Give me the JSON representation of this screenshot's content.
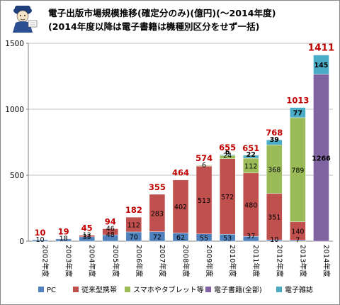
{
  "title": {
    "line1": "電子出版市場規模推移(確定分のみ)(億円)(〜2014年度)",
    "line2": "(2014年度以降は電子書籍は機種別区分をせず一括)"
  },
  "legend": [
    {
      "name": "PC",
      "color": "#4f81bd"
    },
    {
      "name": "従来型携帯",
      "color": "#c0504d"
    },
    {
      "name": "スマホやタブレット等",
      "color": "#9bbb59"
    },
    {
      "name": "電子書籍(全部)",
      "color": "#8064a2"
    },
    {
      "name": "電子雑誌",
      "color": "#4bacc6"
    }
  ],
  "chart_data": {
    "type": "bar",
    "stacked": true,
    "categories": [
      "2002年度",
      "2003年度",
      "2004年度",
      "2005年度",
      "2006年度",
      "2007年度",
      "2008年度",
      "2009年度",
      "2010年度",
      "2011年度",
      "2012年度",
      "2013年度",
      "2014年度"
    ],
    "series": [
      {
        "name": "PC",
        "color": "#4f81bd",
        "values": [
          10,
          18,
          33,
          48,
          70,
          72,
          62,
          55,
          53,
          37,
          10,
          7,
          0
        ]
      },
      {
        "name": "従来型携帯",
        "color": "#c0504d",
        "values": [
          0,
          1,
          12,
          46,
          112,
          283,
          402,
          513,
          572,
          480,
          351,
          140,
          0
        ]
      },
      {
        "name": "スマホやタブレット等",
        "color": "#9bbb59",
        "values": [
          0,
          0,
          0,
          0,
          0,
          0,
          0,
          6,
          24,
          112,
          368,
          789,
          0
        ]
      },
      {
        "name": "電子書籍(全部)",
        "color": "#8064a2",
        "values": [
          0,
          0,
          0,
          0,
          0,
          0,
          0,
          0,
          0,
          0,
          0,
          0,
          1266
        ]
      },
      {
        "name": "電子雑誌",
        "color": "#4bacc6",
        "values": [
          0,
          0,
          0,
          0,
          0,
          0,
          0,
          0,
          6,
          22,
          39,
          77,
          145
        ]
      }
    ],
    "segment_labels": [
      {
        "category": "2002年度",
        "series": "PC",
        "text": "10"
      },
      {
        "category": "2003年度",
        "series": "PC",
        "text": "18"
      },
      {
        "category": "2004年度",
        "series": "PC",
        "text": "33"
      },
      {
        "category": "2004年度",
        "series": "従来型携帯",
        "text": "12"
      },
      {
        "category": "2005年度",
        "series": "PC",
        "text": "48"
      },
      {
        "category": "2005年度",
        "series": "従来型携帯",
        "text": "46"
      },
      {
        "category": "2006年度",
        "series": "PC",
        "text": "70"
      },
      {
        "category": "2006年度",
        "series": "従来型携帯",
        "text": "112"
      },
      {
        "category": "2007年度",
        "series": "PC",
        "text": "72"
      },
      {
        "category": "2007年度",
        "series": "従来型携帯",
        "text": "283"
      },
      {
        "category": "2008年度",
        "series": "PC",
        "text": "62"
      },
      {
        "category": "2008年度",
        "series": "従来型携帯",
        "text": "402"
      },
      {
        "category": "2009年度",
        "series": "PC",
        "text": "55"
      },
      {
        "category": "2009年度",
        "series": "従来型携帯",
        "text": "513"
      },
      {
        "category": "2009年度",
        "series": "スマホやタブレット等",
        "text": "6"
      },
      {
        "category": "2010年度",
        "series": "PC",
        "text": "53"
      },
      {
        "category": "2010年度",
        "series": "従来型携帯",
        "text": "572"
      },
      {
        "category": "2010年度",
        "series": "スマホやタブレット等",
        "text": "24"
      },
      {
        "category": "2010年度",
        "series": "電子雑誌",
        "text": "6"
      },
      {
        "category": "2011年度",
        "series": "PC",
        "text": "37"
      },
      {
        "category": "2011年度",
        "series": "従来型携帯",
        "text": "480"
      },
      {
        "category": "2011年度",
        "series": "スマホやタブレット等",
        "text": "112"
      },
      {
        "category": "2011年度",
        "series": "電子雑誌",
        "text": "22"
      },
      {
        "category": "2012年度",
        "series": "PC",
        "text": "10"
      },
      {
        "category": "2012年度",
        "series": "従来型携帯",
        "text": "351"
      },
      {
        "category": "2012年度",
        "series": "スマホやタブレット等",
        "text": "368"
      },
      {
        "category": "2012年度",
        "series": "電子雑誌",
        "text": "39"
      },
      {
        "category": "2013年度",
        "series": "PC",
        "text": "7"
      },
      {
        "category": "2013年度",
        "series": "従来型携帯",
        "text": "140"
      },
      {
        "category": "2013年度",
        "series": "スマホやタブレット等",
        "text": "789"
      },
      {
        "category": "2013年度",
        "series": "電子雑誌",
        "text": "77"
      },
      {
        "category": "2014年度",
        "series": "電子書籍(全部)",
        "text": "1266"
      },
      {
        "category": "2014年度",
        "series": "電子雑誌",
        "text": "145"
      }
    ],
    "totals": [
      "10",
      "19",
      "45",
      "94",
      "182",
      "355",
      "464",
      "574",
      "655",
      "651",
      "768",
      "1013",
      "1411"
    ],
    "y_ticks": [
      "0",
      "500",
      "1000",
      "1500"
    ],
    "ylim": [
      0,
      1500
    ],
    "grid": true,
    "legend_position": "bottom",
    "colors": {
      "total_label": "#c00000"
    }
  }
}
